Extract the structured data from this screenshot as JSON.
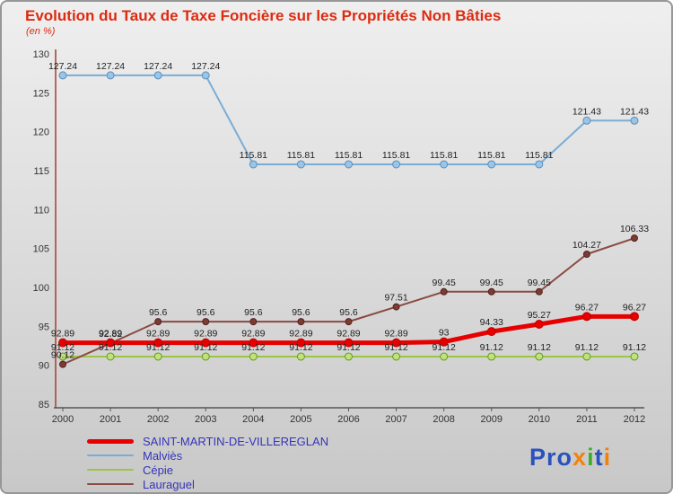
{
  "title": "Evolution du Taux de Taxe Foncière sur les Propriétés Non Bâties",
  "subtitle": "(en %)",
  "colors": {
    "title": "#dd2b10",
    "legend_text": "#3434bb",
    "axis_left": "#a04030",
    "axis_bottom": "#555555",
    "tick_text": "#333333",
    "point_label": "#222222"
  },
  "chart_data": {
    "type": "line",
    "x": [
      2000,
      2001,
      2002,
      2003,
      2004,
      2005,
      2006,
      2007,
      2008,
      2009,
      2010,
      2011,
      2012
    ],
    "ylim": [
      85,
      130
    ],
    "yticks": [
      85,
      90,
      95,
      100,
      105,
      110,
      115,
      120,
      125,
      130
    ],
    "grid": false,
    "legend_position": "bottom-left",
    "series": [
      {
        "name": "SAINT-MARTIN-DE-VILLEREGLAN",
        "color": "#e60000",
        "width": 5,
        "marker_r": 4.5,
        "marker_fill": "#e60000",
        "marker_stroke": "#c00000",
        "values": [
          92.89,
          92.89,
          92.89,
          92.89,
          92.89,
          92.89,
          92.89,
          92.89,
          93,
          94.33,
          95.27,
          96.27,
          96.27
        ],
        "labels": [
          "92.89",
          "92.89",
          "92.89",
          "92.89",
          "92.89",
          "92.89",
          "92.89",
          "92.89",
          "93",
          "94.33",
          "95.27",
          "96.27",
          "96.27"
        ]
      },
      {
        "name": "Malviès",
        "color": "#7aadd6",
        "width": 2,
        "marker_r": 4,
        "marker_fill": "#9cc4e4",
        "marker_stroke": "#5b8fbe",
        "values": [
          127.24,
          127.24,
          127.24,
          127.24,
          115.81,
          115.81,
          115.81,
          115.81,
          115.81,
          115.81,
          115.81,
          121.43,
          121.43
        ],
        "labels": [
          "127.24",
          "127.24",
          "127.24",
          "127.24",
          "115.81",
          "115.81",
          "115.81",
          "115.81",
          "115.81",
          "115.81",
          "115.81",
          "121.43",
          "121.43"
        ]
      },
      {
        "name": "Cépie",
        "color": "#9dc544",
        "width": 2,
        "marker_r": 4,
        "marker_fill": "#c2e178",
        "marker_stroke": "#5d9c28",
        "values": [
          91.12,
          91.12,
          91.12,
          91.12,
          91.12,
          91.12,
          91.12,
          91.12,
          91.12,
          91.12,
          91.12,
          91.12,
          91.12
        ],
        "labels": [
          "91.12",
          "91.12",
          "91.12",
          "91.12",
          "91.12",
          "91.12",
          "91.12",
          "91.12",
          "91.12",
          "91.12",
          "91.12",
          "91.12",
          "91.12"
        ]
      },
      {
        "name": "Lauraguel",
        "color": "#8a4a42",
        "width": 2,
        "marker_r": 3.5,
        "marker_fill": "#7e3b33",
        "marker_stroke": "#4f241f",
        "values": [
          90.12,
          92.82,
          95.6,
          95.6,
          95.6,
          95.6,
          95.6,
          97.51,
          99.45,
          99.45,
          99.45,
          104.27,
          106.33
        ],
        "labels": [
          "90.12",
          "92.82",
          "95.6",
          "95.6",
          "95.6",
          "95.6",
          "95.6",
          "97.51",
          "99.45",
          "99.45",
          "99.45",
          "104.27",
          "106.33"
        ]
      }
    ]
  },
  "logo": {
    "letters": [
      {
        "ch": "P",
        "color": "#2a52be"
      },
      {
        "ch": "r",
        "color": "#2a52be"
      },
      {
        "ch": "o",
        "color": "#2a52be"
      },
      {
        "ch": "x",
        "color": "#f2820a"
      },
      {
        "ch": "i",
        "color": "#3dae2b"
      },
      {
        "ch": "t",
        "color": "#2a52be"
      },
      {
        "ch": "i",
        "color": "#f2820a"
      }
    ]
  }
}
